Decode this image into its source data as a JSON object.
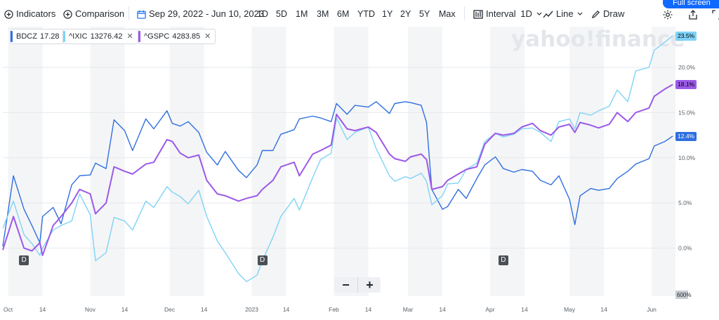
{
  "toolbar": {
    "indicators_label": "Indicators",
    "comparison_label": "Comparison",
    "date_range": "Sep 29, 2022 - Jun 10, 2023",
    "ranges": [
      "1D",
      "5D",
      "1M",
      "3M",
      "6M",
      "YTD",
      "1Y",
      "2Y",
      "5Y",
      "Max"
    ],
    "interval_label": "Interval",
    "interval_value": "1D",
    "charttype_label": "Line",
    "draw_label": "Draw",
    "fullscreen_label": "Full screen"
  },
  "watermark": "yahoo!finance",
  "zoom": {
    "minus": "−",
    "plus": "+"
  },
  "chips": [
    {
      "symbol": "BDCZ",
      "value": "17.28",
      "color": "#2f6fe0",
      "closable": false
    },
    {
      "symbol": "^IXIC",
      "value": "13276.42",
      "color": "#7fd3f7",
      "closable": true
    },
    {
      "symbol": "^GSPC",
      "value": "4283.85",
      "color": "#9b59e8",
      "closable": true
    }
  ],
  "dividend_marker": "D",
  "chart_data": {
    "type": "line",
    "ylim": [
      -0.05,
      0.245
    ],
    "y_ticks": [
      0.2,
      0.15,
      0.1,
      0.05,
      0.0
    ],
    "y_tick_labels": [
      "20.0%",
      "15.0%",
      "10.0%",
      "5.0%",
      "0.0%"
    ],
    "volume_label": "600%",
    "x_tick_labels": [
      "Oct",
      "14",
      "Nov",
      "14",
      "Dec",
      "14",
      "2023",
      "14",
      "Feb",
      "14",
      "Mar",
      "14",
      "Apr",
      "14",
      "May",
      "14",
      "Jun"
    ],
    "x_tick_dates": [
      "2022-10-01",
      "2022-10-14",
      "2022-11-01",
      "2022-11-14",
      "2022-12-01",
      "2022-12-14",
      "2023-01-01",
      "2023-01-14",
      "2023-02-01",
      "2023-02-14",
      "2023-03-01",
      "2023-03-14",
      "2023-04-01",
      "2023-04-14",
      "2023-05-01",
      "2023-05-14",
      "2023-06-01"
    ],
    "x_range": [
      "2022-09-29",
      "2023-06-10"
    ],
    "dividend_dates": [
      "2022-10-07",
      "2023-01-05",
      "2023-04-06"
    ],
    "series": [
      {
        "name": "BDCZ",
        "color": "#2f6fe0",
        "end_label": "12.4%",
        "points": [
          [
            "2022-09-29",
            0.002
          ],
          [
            "2022-10-03",
            0.08
          ],
          [
            "2022-10-07",
            0.043
          ],
          [
            "2022-10-10",
            0.025
          ],
          [
            "2022-10-13",
            0.006
          ],
          [
            "2022-10-14",
            0.035
          ],
          [
            "2022-10-18",
            0.045
          ],
          [
            "2022-10-21",
            0.027
          ],
          [
            "2022-10-25",
            0.07
          ],
          [
            "2022-10-28",
            0.08
          ],
          [
            "2022-11-01",
            0.081
          ],
          [
            "2022-11-03",
            0.094
          ],
          [
            "2022-11-07",
            0.088
          ],
          [
            "2022-11-10",
            0.142
          ],
          [
            "2022-11-14",
            0.13
          ],
          [
            "2022-11-17",
            0.108
          ],
          [
            "2022-11-22",
            0.143
          ],
          [
            "2022-11-25",
            0.132
          ],
          [
            "2022-11-30",
            0.152
          ],
          [
            "2022-12-02",
            0.138
          ],
          [
            "2022-12-05",
            0.135
          ],
          [
            "2022-12-08",
            0.14
          ],
          [
            "2022-12-12",
            0.128
          ],
          [
            "2022-12-15",
            0.106
          ],
          [
            "2022-12-19",
            0.092
          ],
          [
            "2022-12-22",
            0.107
          ],
          [
            "2022-12-27",
            0.086
          ],
          [
            "2022-12-30",
            0.078
          ],
          [
            "2023-01-03",
            0.092
          ],
          [
            "2023-01-05",
            0.108
          ],
          [
            "2023-01-09",
            0.108
          ],
          [
            "2023-01-12",
            0.126
          ],
          [
            "2023-01-17",
            0.131
          ],
          [
            "2023-01-19",
            0.143
          ],
          [
            "2023-01-24",
            0.146
          ],
          [
            "2023-01-27",
            0.144
          ],
          [
            "2023-01-31",
            0.14
          ],
          [
            "2023-02-02",
            0.16
          ],
          [
            "2023-02-06",
            0.148
          ],
          [
            "2023-02-09",
            0.158
          ],
          [
            "2023-02-14",
            0.156
          ],
          [
            "2023-02-17",
            0.162
          ],
          [
            "2023-02-22",
            0.149
          ],
          [
            "2023-02-24",
            0.16
          ],
          [
            "2023-02-28",
            0.162
          ],
          [
            "2023-03-02",
            0.161
          ],
          [
            "2023-03-06",
            0.158
          ],
          [
            "2023-03-08",
            0.139
          ],
          [
            "2023-03-10",
            0.065
          ],
          [
            "2023-03-14",
            0.043
          ],
          [
            "2023-03-16",
            0.046
          ],
          [
            "2023-03-20",
            0.065
          ],
          [
            "2023-03-23",
            0.055
          ],
          [
            "2023-03-27",
            0.077
          ],
          [
            "2023-03-30",
            0.092
          ],
          [
            "2023-04-03",
            0.101
          ],
          [
            "2023-04-06",
            0.088
          ],
          [
            "2023-04-10",
            0.084
          ],
          [
            "2023-04-13",
            0.087
          ],
          [
            "2023-04-17",
            0.085
          ],
          [
            "2023-04-20",
            0.075
          ],
          [
            "2023-04-24",
            0.07
          ],
          [
            "2023-04-27",
            0.08
          ],
          [
            "2023-05-01",
            0.054
          ],
          [
            "2023-05-03",
            0.026
          ],
          [
            "2023-05-05",
            0.058
          ],
          [
            "2023-05-09",
            0.066
          ],
          [
            "2023-05-12",
            0.064
          ],
          [
            "2023-05-16",
            0.066
          ],
          [
            "2023-05-19",
            0.077
          ],
          [
            "2023-05-23",
            0.085
          ],
          [
            "2023-05-26",
            0.093
          ],
          [
            "2023-05-31",
            0.099
          ],
          [
            "2023-06-02",
            0.113
          ],
          [
            "2023-06-06",
            0.118
          ],
          [
            "2023-06-09",
            0.124
          ]
        ]
      },
      {
        "name": "^IXIC",
        "color": "#7fd3f7",
        "end_label": "23.5%",
        "points": [
          [
            "2022-09-29",
            0.022
          ],
          [
            "2022-10-03",
            0.052
          ],
          [
            "2022-10-07",
            0.015
          ],
          [
            "2022-10-10",
            0.005
          ],
          [
            "2022-10-13",
            -0.008
          ],
          [
            "2022-10-14",
            0.0
          ],
          [
            "2022-10-18",
            0.02
          ],
          [
            "2022-10-21",
            0.025
          ],
          [
            "2022-10-25",
            0.03
          ],
          [
            "2022-10-28",
            0.06
          ],
          [
            "2022-11-01",
            0.037
          ],
          [
            "2022-11-03",
            -0.014
          ],
          [
            "2022-11-07",
            -0.005
          ],
          [
            "2022-11-10",
            0.034
          ],
          [
            "2022-11-14",
            0.03
          ],
          [
            "2022-11-17",
            0.02
          ],
          [
            "2022-11-22",
            0.052
          ],
          [
            "2022-11-25",
            0.045
          ],
          [
            "2022-11-30",
            0.068
          ],
          [
            "2022-12-02",
            0.062
          ],
          [
            "2022-12-05",
            0.057
          ],
          [
            "2022-12-08",
            0.049
          ],
          [
            "2022-12-12",
            0.064
          ],
          [
            "2022-12-15",
            0.035
          ],
          [
            "2022-12-19",
            0.008
          ],
          [
            "2022-12-22",
            -0.005
          ],
          [
            "2022-12-27",
            -0.028
          ],
          [
            "2022-12-30",
            -0.037
          ],
          [
            "2023-01-03",
            -0.03
          ],
          [
            "2023-01-05",
            -0.014
          ],
          [
            "2023-01-09",
            0.012
          ],
          [
            "2023-01-12",
            0.035
          ],
          [
            "2023-01-17",
            0.055
          ],
          [
            "2023-01-19",
            0.042
          ],
          [
            "2023-01-24",
            0.078
          ],
          [
            "2023-01-27",
            0.098
          ],
          [
            "2023-01-31",
            0.105
          ],
          [
            "2023-02-02",
            0.144
          ],
          [
            "2023-02-06",
            0.12
          ],
          [
            "2023-02-09",
            0.128
          ],
          [
            "2023-02-14",
            0.134
          ],
          [
            "2023-02-17",
            0.11
          ],
          [
            "2023-02-22",
            0.08
          ],
          [
            "2023-02-24",
            0.074
          ],
          [
            "2023-02-28",
            0.079
          ],
          [
            "2023-03-02",
            0.077
          ],
          [
            "2023-03-06",
            0.083
          ],
          [
            "2023-03-08",
            0.074
          ],
          [
            "2023-03-10",
            0.048
          ],
          [
            "2023-03-14",
            0.058
          ],
          [
            "2023-03-16",
            0.071
          ],
          [
            "2023-03-20",
            0.072
          ],
          [
            "2023-03-23",
            0.087
          ],
          [
            "2023-03-27",
            0.094
          ],
          [
            "2023-03-30",
            0.118
          ],
          [
            "2023-04-03",
            0.127
          ],
          [
            "2023-04-06",
            0.123
          ],
          [
            "2023-04-10",
            0.126
          ],
          [
            "2023-04-13",
            0.132
          ],
          [
            "2023-04-17",
            0.133
          ],
          [
            "2023-04-20",
            0.128
          ],
          [
            "2023-04-24",
            0.118
          ],
          [
            "2023-04-27",
            0.14
          ],
          [
            "2023-05-01",
            0.143
          ],
          [
            "2023-05-03",
            0.132
          ],
          [
            "2023-05-05",
            0.15
          ],
          [
            "2023-05-09",
            0.147
          ],
          [
            "2023-05-12",
            0.152
          ],
          [
            "2023-05-16",
            0.157
          ],
          [
            "2023-05-19",
            0.175
          ],
          [
            "2023-05-23",
            0.162
          ],
          [
            "2023-05-26",
            0.196
          ],
          [
            "2023-05-31",
            0.2
          ],
          [
            "2023-06-02",
            0.219
          ],
          [
            "2023-06-06",
            0.228
          ],
          [
            "2023-06-09",
            0.235
          ]
        ]
      },
      {
        "name": "^GSPC",
        "color": "#9b59e8",
        "end_label": "18.1%",
        "points": [
          [
            "2022-09-29",
            -0.002
          ],
          [
            "2022-10-03",
            0.035
          ],
          [
            "2022-10-07",
            0.0
          ],
          [
            "2022-10-10",
            -0.003
          ],
          [
            "2022-10-13",
            0.006
          ],
          [
            "2022-10-14",
            -0.008
          ],
          [
            "2022-10-18",
            0.025
          ],
          [
            "2022-10-21",
            0.035
          ],
          [
            "2022-10-25",
            0.05
          ],
          [
            "2022-10-28",
            0.065
          ],
          [
            "2022-11-01",
            0.06
          ],
          [
            "2022-11-03",
            0.038
          ],
          [
            "2022-11-07",
            0.05
          ],
          [
            "2022-11-10",
            0.09
          ],
          [
            "2022-11-14",
            0.085
          ],
          [
            "2022-11-17",
            0.082
          ],
          [
            "2022-11-22",
            0.093
          ],
          [
            "2022-11-25",
            0.095
          ],
          [
            "2022-11-30",
            0.12
          ],
          [
            "2022-12-02",
            0.118
          ],
          [
            "2022-12-05",
            0.105
          ],
          [
            "2022-12-08",
            0.1
          ],
          [
            "2022-12-12",
            0.103
          ],
          [
            "2022-12-15",
            0.075
          ],
          [
            "2022-12-19",
            0.06
          ],
          [
            "2022-12-22",
            0.058
          ],
          [
            "2022-12-27",
            0.052
          ],
          [
            "2022-12-30",
            0.055
          ],
          [
            "2023-01-03",
            0.058
          ],
          [
            "2023-01-05",
            0.065
          ],
          [
            "2023-01-09",
            0.075
          ],
          [
            "2023-01-12",
            0.09
          ],
          [
            "2023-01-17",
            0.095
          ],
          [
            "2023-01-19",
            0.08
          ],
          [
            "2023-01-24",
            0.104
          ],
          [
            "2023-01-27",
            0.108
          ],
          [
            "2023-01-31",
            0.114
          ],
          [
            "2023-02-02",
            0.148
          ],
          [
            "2023-02-06",
            0.132
          ],
          [
            "2023-02-09",
            0.13
          ],
          [
            "2023-02-14",
            0.134
          ],
          [
            "2023-02-17",
            0.128
          ],
          [
            "2023-02-22",
            0.104
          ],
          [
            "2023-02-24",
            0.099
          ],
          [
            "2023-02-28",
            0.096
          ],
          [
            "2023-03-02",
            0.101
          ],
          [
            "2023-03-06",
            0.104
          ],
          [
            "2023-03-08",
            0.098
          ],
          [
            "2023-03-10",
            0.065
          ],
          [
            "2023-03-14",
            0.068
          ],
          [
            "2023-03-16",
            0.075
          ],
          [
            "2023-03-20",
            0.082
          ],
          [
            "2023-03-23",
            0.087
          ],
          [
            "2023-03-27",
            0.09
          ],
          [
            "2023-03-30",
            0.115
          ],
          [
            "2023-04-03",
            0.127
          ],
          [
            "2023-04-06",
            0.125
          ],
          [
            "2023-04-10",
            0.127
          ],
          [
            "2023-04-13",
            0.134
          ],
          [
            "2023-04-17",
            0.138
          ],
          [
            "2023-04-20",
            0.13
          ],
          [
            "2023-04-24",
            0.125
          ],
          [
            "2023-04-27",
            0.134
          ],
          [
            "2023-05-01",
            0.137
          ],
          [
            "2023-05-03",
            0.128
          ],
          [
            "2023-05-05",
            0.139
          ],
          [
            "2023-05-09",
            0.136
          ],
          [
            "2023-05-12",
            0.133
          ],
          [
            "2023-05-16",
            0.137
          ],
          [
            "2023-05-19",
            0.15
          ],
          [
            "2023-05-23",
            0.14
          ],
          [
            "2023-05-26",
            0.15
          ],
          [
            "2023-05-31",
            0.155
          ],
          [
            "2023-06-02",
            0.168
          ],
          [
            "2023-06-06",
            0.176
          ],
          [
            "2023-06-09",
            0.181
          ]
        ]
      }
    ]
  }
}
